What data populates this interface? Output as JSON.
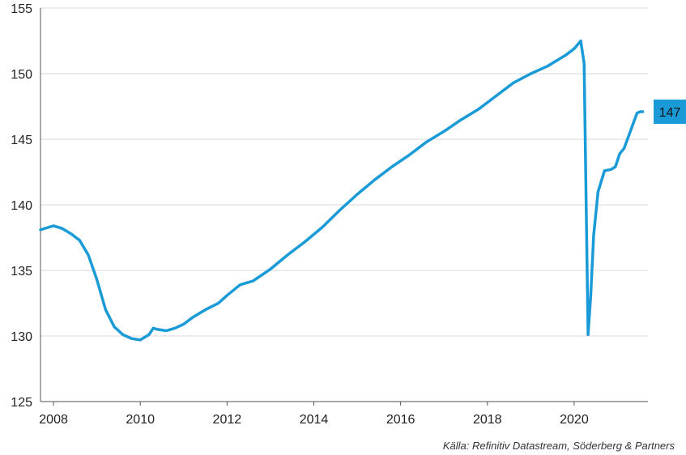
{
  "chart_data": {
    "type": "line",
    "title": "",
    "xlabel": "",
    "ylabel": "",
    "xlim": [
      2007.7,
      2021.7
    ],
    "ylim": [
      125,
      155
    ],
    "x_ticks": [
      2008,
      2010,
      2012,
      2014,
      2016,
      2018,
      2020
    ],
    "y_ticks": [
      125,
      130,
      135,
      140,
      145,
      150,
      155
    ],
    "x_tick_labels": [
      "2008",
      "2010",
      "2012",
      "2014",
      "2016",
      "2018",
      "2020"
    ],
    "y_tick_labels": [
      "125",
      "130",
      "135",
      "140",
      "145",
      "150",
      "155"
    ],
    "grid": "horizontal",
    "legend": "none",
    "series": [
      {
        "color": "#1a9bd7",
        "x": [
          2007.7,
          2007.9,
          2008.0,
          2008.2,
          2008.4,
          2008.6,
          2008.8,
          2009.0,
          2009.2,
          2009.4,
          2009.6,
          2009.8,
          2010.0,
          2010.2,
          2010.3,
          2010.4,
          2010.6,
          2010.8,
          2011.0,
          2011.2,
          2011.5,
          2011.8,
          2012.0,
          2012.3,
          2012.6,
          2013.0,
          2013.4,
          2013.8,
          2014.2,
          2014.6,
          2015.0,
          2015.4,
          2015.8,
          2016.2,
          2016.6,
          2017.0,
          2017.4,
          2017.8,
          2018.2,
          2018.6,
          2019.0,
          2019.4,
          2019.8,
          2020.0,
          2020.15,
          2020.23,
          2020.32,
          2020.38,
          2020.45,
          2020.55,
          2020.7,
          2020.85,
          2020.95,
          2021.05,
          2021.15,
          2021.25,
          2021.35,
          2021.45,
          2021.52,
          2021.58
        ],
        "y": [
          138.1,
          138.3,
          138.4,
          138.2,
          137.8,
          137.3,
          136.2,
          134.3,
          132.0,
          130.7,
          130.1,
          129.8,
          129.7,
          130.1,
          130.6,
          130.5,
          130.4,
          130.6,
          130.9,
          131.4,
          132.0,
          132.5,
          133.1,
          133.9,
          134.2,
          135.1,
          136.2,
          137.2,
          138.3,
          139.6,
          140.8,
          141.9,
          142.9,
          143.8,
          144.8,
          145.6,
          146.5,
          147.3,
          148.3,
          149.3,
          150.0,
          150.6,
          151.4,
          151.9,
          152.5,
          150.8,
          130.1,
          133.0,
          137.7,
          141.0,
          142.6,
          142.7,
          142.9,
          143.9,
          144.3,
          145.2,
          146.1,
          147.0,
          147.1,
          147.1
        ]
      }
    ],
    "end_label": "147",
    "source": "Källa: Refinitiv Datastream, Söderberg & Partners"
  }
}
